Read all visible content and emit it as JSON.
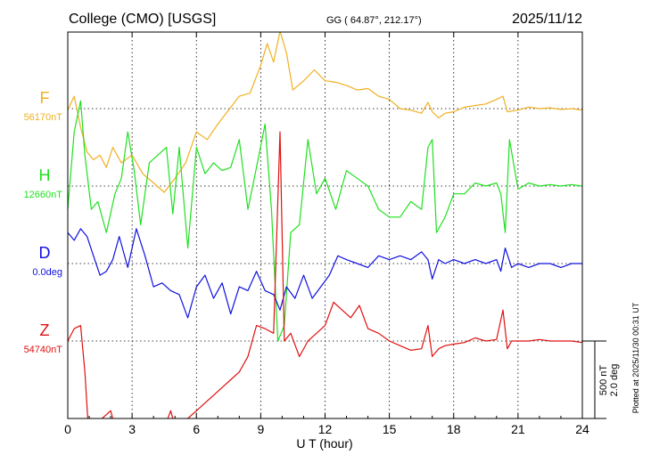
{
  "chart_data": {
    "type": "line",
    "title": "College (CMO)  [USGS]",
    "coords": "GG ( 64.87°, 212.17°)",
    "date": "2025/11/12",
    "xlabel": "U T (hour)",
    "xlim": [
      0,
      24
    ],
    "x_ticks": [
      "0",
      "3",
      "6",
      "9",
      "12",
      "15",
      "18",
      "21",
      "24"
    ],
    "grid": true,
    "scale_label_nt": "500 nT",
    "scale_label_deg": "2.0 deg",
    "plotted_note": "Plotted at 2025/11/30 00:31 UT",
    "series": [
      {
        "name": "F",
        "baseline": "56170nT",
        "color": "#f0b020",
        "unit": "nT",
        "x": [
          0,
          0.3,
          0.6,
          0.9,
          1.2,
          1.5,
          1.8,
          2.1,
          2.5,
          3.0,
          3.5,
          4.0,
          4.5,
          5.0,
          5.5,
          6.0,
          6.5,
          7.0,
          7.5,
          8.0,
          8.5,
          9.0,
          9.3,
          9.6,
          9.9,
          10.2,
          10.5,
          11.0,
          11.5,
          12.0,
          12.5,
          13.0,
          13.5,
          14.0,
          14.5,
          15.0,
          15.5,
          16.0,
          16.5,
          16.8,
          17.0,
          17.3,
          17.6,
          18.0,
          18.5,
          19.0,
          19.5,
          20.0,
          20.3,
          20.5,
          21.0,
          21.5,
          22.0,
          22.5,
          23.0,
          23.5,
          24.0
        ],
        "values": [
          -10,
          80,
          -120,
          -280,
          -330,
          -300,
          -380,
          -250,
          -350,
          -300,
          -420,
          -480,
          -540,
          -450,
          -350,
          -150,
          -200,
          -100,
          -10,
          80,
          100,
          280,
          420,
          300,
          500,
          360,
          120,
          180,
          250,
          180,
          170,
          150,
          120,
          130,
          80,
          60,
          0,
          -10,
          -30,
          40,
          -20,
          -60,
          -30,
          -20,
          10,
          20,
          30,
          60,
          80,
          -20,
          -10,
          10,
          0,
          5,
          -5,
          0,
          -10
        ]
      },
      {
        "name": "H",
        "baseline": "12660nT",
        "color": "#20e020",
        "unit": "nT",
        "x": [
          0,
          0.3,
          0.6,
          0.8,
          1.1,
          1.4,
          1.8,
          2.2,
          2.5,
          2.8,
          3.1,
          3.4,
          3.8,
          4.2,
          4.6,
          4.9,
          5.2,
          5.6,
          6.0,
          6.4,
          6.8,
          7.2,
          7.6,
          8.0,
          8.4,
          8.8,
          9.2,
          9.5,
          9.8,
          10.1,
          10.4,
          10.8,
          11.2,
          11.6,
          12.0,
          12.5,
          13.0,
          13.5,
          14.0,
          14.5,
          15.0,
          15.5,
          16.0,
          16.5,
          16.8,
          17.0,
          17.2,
          17.6,
          18.0,
          18.5,
          19.0,
          19.5,
          20.0,
          20.2,
          20.4,
          20.6,
          21.0,
          21.5,
          22.0,
          22.5,
          23.0,
          23.5,
          24.0
        ],
        "values": [
          -150,
          350,
          550,
          200,
          -150,
          -100,
          -300,
          -50,
          50,
          350,
          100,
          -250,
          150,
          200,
          250,
          -180,
          250,
          -400,
          250,
          80,
          150,
          100,
          120,
          300,
          -150,
          120,
          400,
          -150,
          -1000,
          -900,
          -300,
          -250,
          300,
          -50,
          50,
          -150,
          100,
          50,
          0,
          -150,
          -200,
          -200,
          -100,
          -150,
          250,
          300,
          -300,
          -200,
          -50,
          -50,
          20,
          0,
          20,
          -50,
          -300,
          300,
          -20,
          20,
          0,
          10,
          0,
          10,
          0
        ]
      },
      {
        "name": "D",
        "baseline": "0.0deg",
        "color": "#1010e0",
        "unit": "deg",
        "x": [
          0,
          0.3,
          0.6,
          0.9,
          1.2,
          1.5,
          1.8,
          2.1,
          2.4,
          2.8,
          3.2,
          3.6,
          4.0,
          4.4,
          4.8,
          5.2,
          5.6,
          6.0,
          6.4,
          6.8,
          7.2,
          7.6,
          8.0,
          8.4,
          8.8,
          9.2,
          9.6,
          9.9,
          10.2,
          10.6,
          11.0,
          11.4,
          11.8,
          12.2,
          12.6,
          13.0,
          13.5,
          14.0,
          14.5,
          15.0,
          15.5,
          16.0,
          16.5,
          16.8,
          17.0,
          17.3,
          17.6,
          18.0,
          18.5,
          19.0,
          19.5,
          20.0,
          20.2,
          20.4,
          20.7,
          21.0,
          21.5,
          22.0,
          22.5,
          23.0,
          23.5,
          24.0
        ],
        "values": [
          0.8,
          0.6,
          0.9,
          0.7,
          0.2,
          -0.3,
          -0.2,
          0.1,
          0.7,
          -0.1,
          0.9,
          0.2,
          -0.6,
          -0.5,
          -0.7,
          -0.8,
          -1.4,
          -0.6,
          -0.3,
          -0.9,
          -0.5,
          -1.3,
          -0.6,
          -0.7,
          -0.2,
          -0.7,
          -0.8,
          -1.2,
          -0.6,
          -0.9,
          -0.3,
          -0.9,
          -0.6,
          -0.3,
          0.2,
          0.1,
          0.0,
          -0.1,
          0.2,
          0.1,
          0.2,
          0.1,
          0.3,
          0.1,
          -0.4,
          0.1,
          0.0,
          0.1,
          0.0,
          0.1,
          0.0,
          0.1,
          -0.2,
          0.4,
          -0.1,
          0.0,
          -0.1,
          0.0,
          0.0,
          -0.1,
          0.0,
          0.0
        ]
      },
      {
        "name": "Z",
        "baseline": "54740nT",
        "color": "#e01010",
        "unit": "nT",
        "x": [
          0,
          0.3,
          0.6,
          0.8,
          1.0,
          1.3,
          1.6,
          2.0,
          2.4,
          2.8,
          3.2,
          3.6,
          4.0,
          4.4,
          4.8,
          5.2,
          5.6,
          6.0,
          6.4,
          6.8,
          7.2,
          7.6,
          8.0,
          8.4,
          8.8,
          9.2,
          9.6,
          9.9,
          10.1,
          10.4,
          10.8,
          11.2,
          11.6,
          12.0,
          12.4,
          12.8,
          13.2,
          13.6,
          14.0,
          14.5,
          15.0,
          15.5,
          16.0,
          16.5,
          16.8,
          17.0,
          17.3,
          17.6,
          18.0,
          18.5,
          19.0,
          19.5,
          20.0,
          20.3,
          20.5,
          20.7,
          21.0,
          21.5,
          22.0,
          22.5,
          23.0,
          23.5,
          24.0
        ],
        "values": [
          0,
          80,
          100,
          -200,
          -650,
          -700,
          -500,
          -450,
          -650,
          -550,
          -650,
          -500,
          -550,
          -600,
          -450,
          -650,
          -500,
          -450,
          -400,
          -350,
          -300,
          -250,
          -200,
          -100,
          100,
          80,
          50,
          1350,
          0,
          50,
          -100,
          0,
          50,
          100,
          250,
          200,
          150,
          230,
          80,
          50,
          0,
          -30,
          -60,
          -50,
          100,
          -100,
          -50,
          -30,
          -20,
          -10,
          20,
          0,
          10,
          200,
          -50,
          0,
          0,
          0,
          10,
          0,
          0,
          0,
          -10
        ]
      }
    ]
  }
}
